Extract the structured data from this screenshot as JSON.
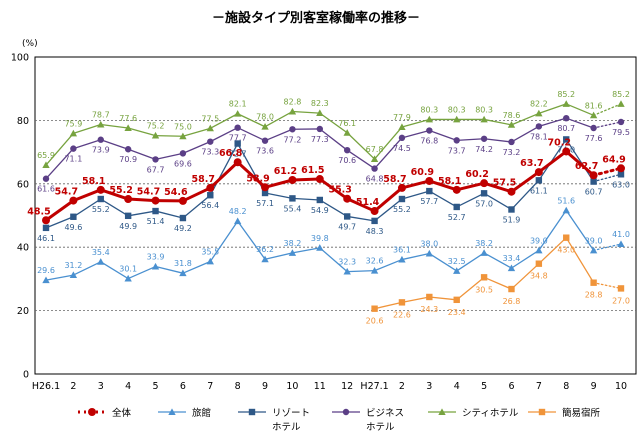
{
  "chart_data": {
    "type": "line",
    "title": "－施設タイプ別客室稼働率の推移－",
    "ylabel": "(%)",
    "ylim": [
      0,
      100
    ],
    "yticks": [
      0,
      20,
      40,
      60,
      80,
      100
    ],
    "categories": [
      "H26.1",
      "2",
      "3",
      "4",
      "5",
      "6",
      "7",
      "8",
      "9",
      "10",
      "11",
      "12",
      "H27.1",
      "2",
      "3",
      "4",
      "5",
      "6",
      "7",
      "8",
      "9",
      "10"
    ],
    "series": [
      {
        "key": "city",
        "name": "シティホテル",
        "color": "#77a33f",
        "marker": "triangle",
        "values": [
          65.9,
          75.9,
          78.7,
          77.6,
          75.2,
          75.0,
          77.5,
          82.1,
          78.0,
          82.8,
          82.3,
          76.1,
          67.8,
          77.9,
          80.3,
          80.3,
          80.3,
          78.6,
          82.2,
          85.2,
          81.6,
          85.2
        ],
        "labels": [
          "65.9",
          "75.9",
          "78.7",
          "77.6",
          "75.2",
          "75.0",
          "77.5",
          "82.1",
          "78.0",
          "82.8",
          "82.3",
          "76.1",
          "67.8",
          "77.9",
          "80.3",
          "80.3",
          "80.3",
          "78.6",
          "82.2",
          "85.2",
          "81.6",
          "85.2"
        ]
      },
      {
        "key": "business",
        "name": "ビジネスホテル",
        "color": "#5b3f86",
        "marker": "circle",
        "values": [
          61.6,
          71.1,
          73.9,
          70.9,
          67.7,
          69.6,
          73.3,
          77.7,
          73.6,
          77.2,
          77.3,
          70.6,
          64.8,
          74.5,
          76.8,
          73.7,
          74.2,
          73.2,
          78.1,
          80.7,
          77.6,
          79.5
        ],
        "labels": [
          "61.6",
          "71.1",
          "73.9",
          "70.9",
          "67.7",
          "69.6",
          "73.3",
          "77.7",
          "73.6",
          "77.2",
          "77.3",
          "70.6",
          "64.8",
          "74.5",
          "76.8",
          "73.7",
          "74.2",
          "73.2",
          "78.1",
          "80.7",
          "77.6",
          "79.5"
        ]
      },
      {
        "key": "total",
        "name": "全体",
        "color": "#c00000",
        "marker": "circle",
        "values": [
          48.5,
          54.7,
          58.1,
          55.2,
          54.7,
          54.6,
          58.7,
          66.8,
          58.9,
          61.2,
          61.5,
          55.3,
          51.4,
          58.7,
          60.9,
          58.1,
          60.2,
          57.5,
          63.7,
          70.2,
          62.7,
          64.9
        ],
        "labels": [
          "48.5",
          "54.7",
          "58.1",
          "55.2",
          "54.7",
          "54.6",
          "58.7",
          "66.8",
          "58.9",
          "61.2",
          "61.5",
          "55.3",
          "51.4",
          "58.7",
          "60.9",
          "58.1",
          "60.2",
          "57.5",
          "63.7",
          "70.2",
          "62.7",
          "64.9"
        ]
      },
      {
        "key": "resort",
        "name": "リゾートホテル",
        "color": "#2e5887",
        "marker": "square",
        "values": [
          46.1,
          49.6,
          55.2,
          49.9,
          51.4,
          49.2,
          56.4,
          72.7,
          57.1,
          55.4,
          54.9,
          49.7,
          48.3,
          55.2,
          57.7,
          52.7,
          57.0,
          51.9,
          61.1,
          74.0,
          60.7,
          63.0
        ],
        "labels": [
          "46.1",
          "49.6",
          "55.2",
          "49.9",
          "51.4",
          "49.2",
          "56.4",
          "72.7",
          "57.1",
          "55.4",
          "54.9",
          "49.7",
          "48.3",
          "55.2",
          "57.7",
          "52.7",
          "57.0",
          "51.9",
          "61.1",
          "74.0",
          "60.7",
          "63.0"
        ]
      },
      {
        "key": "ryokan",
        "name": "旅館",
        "color": "#4a90d0",
        "marker": "triangle",
        "values": [
          29.6,
          31.2,
          35.4,
          30.1,
          33.9,
          31.8,
          35.5,
          48.2,
          36.2,
          38.2,
          39.8,
          32.3,
          32.6,
          36.1,
          38.0,
          32.5,
          38.2,
          33.4,
          39.0,
          51.6,
          39.0,
          41.0
        ],
        "labels": [
          "29.6",
          "31.2",
          "35.4",
          "30.1",
          "33.9",
          "31.8",
          "35.5",
          "48.2",
          "36.2",
          "38.2",
          "39.8",
          "32.3",
          "32.6",
          "36.1",
          "38.0",
          "32.5",
          "38.2",
          "33.4",
          "39.0",
          "51.6",
          "39.0",
          "41.0"
        ]
      },
      {
        "key": "simple",
        "name": "簡易宿所",
        "color": "#f0943a",
        "marker": "square",
        "values": [
          null,
          null,
          null,
          null,
          null,
          null,
          null,
          null,
          null,
          null,
          null,
          null,
          20.6,
          22.6,
          24.3,
          23.4,
          30.5,
          26.8,
          34.8,
          43.0,
          28.8,
          27.0
        ],
        "labels": [
          null,
          null,
          null,
          null,
          null,
          null,
          null,
          null,
          null,
          null,
          null,
          null,
          "20.6",
          "22.6",
          "24.3",
          "23.4",
          "30.5",
          "26.8",
          "34.8",
          "43.0",
          "28.8",
          "27.0"
        ]
      }
    ],
    "dotted_last_segment": true,
    "legend": [
      {
        "key": "total",
        "text": "全体"
      },
      {
        "key": "ryokan",
        "text": "旅館"
      },
      {
        "key": "resort",
        "text": "リゾート\nホテル"
      },
      {
        "key": "business",
        "text": "ビジネス\nホテル"
      },
      {
        "key": "city",
        "text": "シティホテル"
      },
      {
        "key": "simple",
        "text": "簡易宿所"
      }
    ]
  }
}
